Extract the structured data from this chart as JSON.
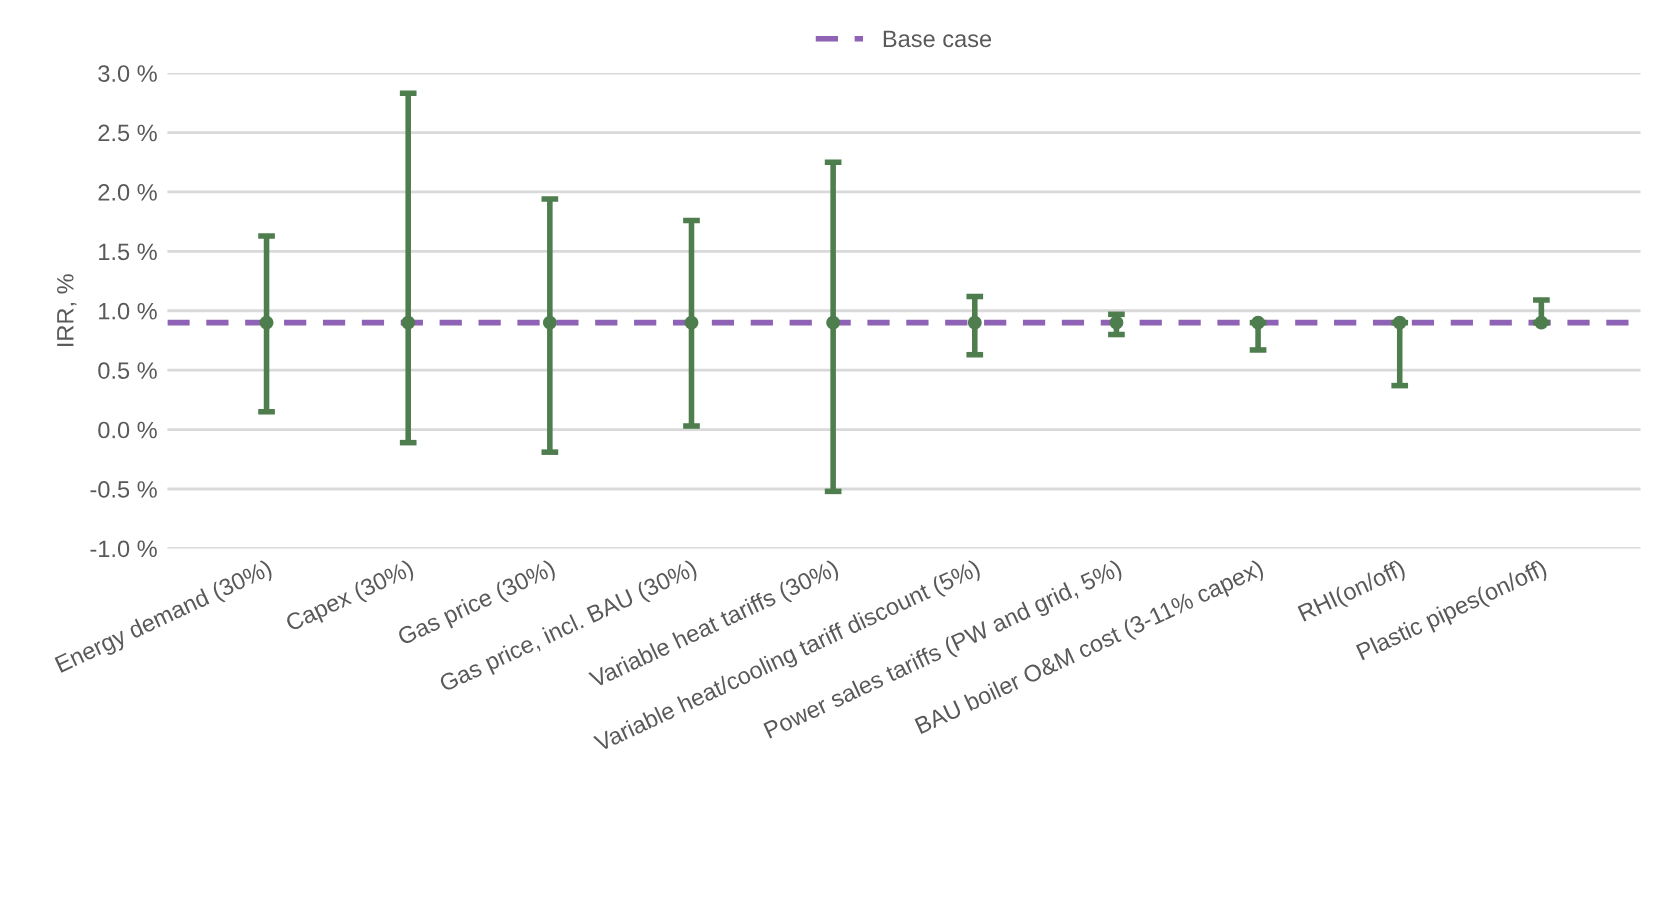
{
  "chart_data": {
    "type": "scatter",
    "ylabel": "IRR, %",
    "categories": [
      "Energy demand (30%)",
      "Capex (30%)",
      "Gas price (30%)",
      "Gas price, incl. BAU (30%)",
      "Variable heat tariffs (30%)",
      "Variable heat/cooling tariff discount (5%)",
      "Power sales tariffs (PW and grid, 5%)",
      "BAU boiler O&M cost (3-11% capex)",
      "RHI(on/off)",
      "Plastic pipes(on/off)"
    ],
    "series": [
      {
        "color": "#4e7d4e",
        "values": [
          0.9,
          0.9,
          0.9,
          0.9,
          0.9,
          0.9,
          0.9,
          0.9,
          0.9,
          0.9
        ],
        "errors": [
          [
            0.15,
            1.63
          ],
          [
            -0.11,
            2.83
          ],
          [
            -0.19,
            1.94
          ],
          [
            0.03,
            1.76
          ],
          [
            -0.52,
            2.25
          ],
          [
            0.63,
            1.12
          ],
          [
            0.8,
            0.97
          ],
          [
            0.67,
            0.9
          ],
          [
            0.37,
            0.9
          ],
          [
            0.9,
            1.09
          ]
        ]
      }
    ],
    "marker": "circle",
    "ref_lines": [
      {
        "axis": "y",
        "value": 0.9,
        "label": "Base case",
        "color": "#8e62b5",
        "line_style": "dashed"
      }
    ],
    "ylim": [
      -1.0,
      3.0
    ],
    "yticks": [
      {
        "value": -1.0,
        "label": "-1.0 %"
      },
      {
        "value": -0.5,
        "label": "-0.5 %"
      },
      {
        "value": 0.0,
        "label": "0.0 %"
      },
      {
        "value": 0.5,
        "label": "0.5 %"
      },
      {
        "value": 1.0,
        "label": "1.0 %"
      },
      {
        "value": 1.5,
        "label": "1.5 %"
      },
      {
        "value": 2.0,
        "label": "2.0 %"
      },
      {
        "value": 2.5,
        "label": "2.5 %"
      },
      {
        "value": 3.0,
        "label": "3.0 %"
      }
    ],
    "grid": "y",
    "legend": "top"
  }
}
